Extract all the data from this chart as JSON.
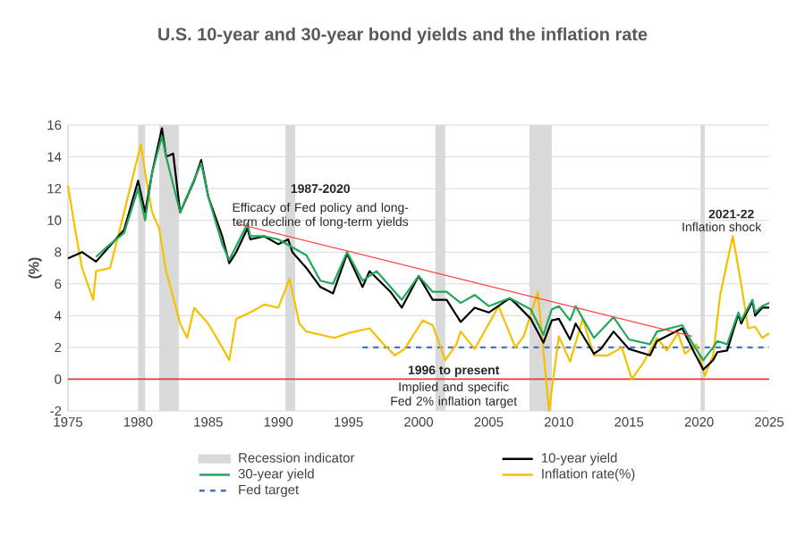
{
  "chart_data": {
    "type": "line",
    "title": "U.S. 10-year and 30-year bond yields and the inflation rate",
    "ylabel": "(%)",
    "xlim": [
      1975,
      2025
    ],
    "xticks": [
      1975,
      1980,
      1985,
      1990,
      1995,
      2000,
      2005,
      2010,
      2015,
      2020,
      2025
    ],
    "ylim": [
      -2,
      16
    ],
    "yticks": [
      -2,
      0,
      2,
      4,
      6,
      8,
      10,
      12,
      14,
      16
    ],
    "grid": "y",
    "legend": "bottom",
    "bands": [
      {
        "axis": "x",
        "from": 1980.0,
        "to": 1980.5,
        "label": "Recession indicator",
        "color": "#d9d9d9"
      },
      {
        "axis": "x",
        "from": 1981.5,
        "to": 1982.9,
        "color": "#d9d9d9"
      },
      {
        "axis": "x",
        "from": 1990.5,
        "to": 1991.2,
        "color": "#d9d9d9"
      },
      {
        "axis": "x",
        "from": 2001.2,
        "to": 2001.9,
        "color": "#d9d9d9"
      },
      {
        "axis": "x",
        "from": 2007.9,
        "to": 2009.5,
        "color": "#d9d9d9"
      },
      {
        "axis": "x",
        "from": 2020.1,
        "to": 2020.4,
        "color": "#d9d9d9"
      }
    ],
    "ref_lines": [
      {
        "axis": "y",
        "value": 0,
        "color": "#e53935"
      }
    ],
    "annotations": [
      "1987-2020",
      "Efficacy of Fed policy and long-term decline of long-term yields",
      "2021-22",
      "Inflation shock",
      "1996 to present",
      "Implied and specific Fed 2% inflation target"
    ],
    "series": [
      {
        "name": "10-year yield",
        "color": "#000000",
        "x": [
          1975,
          1976,
          1977,
          1978,
          1979,
          1980,
          1980.5,
          1981,
          1981.7,
          1982,
          1982.5,
          1983,
          1984,
          1984.5,
          1985,
          1986,
          1986.5,
          1987,
          1987.8,
          1988,
          1989,
          1990,
          1990.7,
          1991,
          1992,
          1993,
          1993.9,
          1994.9,
          1996,
          1996.5,
          1998,
          1998.8,
          2000,
          2001,
          2002,
          2003,
          2004,
          2005,
          2006.5,
          2007,
          2008,
          2008.9,
          2009.5,
          2010,
          2010.8,
          2011.2,
          2012.5,
          2013,
          2013.9,
          2015,
          2016.5,
          2017,
          2018.8,
          2019.7,
          2020.3,
          2021,
          2021.3,
          2022,
          2022.8,
          2023,
          2023.8,
          2024,
          2024.5,
          2025
        ],
        "values": [
          7.6,
          8.0,
          7.4,
          8.4,
          9.4,
          12.5,
          10.5,
          13,
          15.8,
          14,
          14.2,
          10.5,
          12.5,
          13.8,
          11.5,
          9,
          7.3,
          8.0,
          9.5,
          8.8,
          9.0,
          8.5,
          8.8,
          8.0,
          7.0,
          5.8,
          5.4,
          7.9,
          5.8,
          6.8,
          5.5,
          4.5,
          6.5,
          5.0,
          5.0,
          3.6,
          4.5,
          4.2,
          5.1,
          4.7,
          3.8,
          2.3,
          3.7,
          3.8,
          2.5,
          3.5,
          1.6,
          1.9,
          3.0,
          1.9,
          1.5,
          2.4,
          3.2,
          1.6,
          0.6,
          1.2,
          1.7,
          1.8,
          4.1,
          3.5,
          4.9,
          4.0,
          4.5,
          4.5
        ]
      },
      {
        "name": "30-year yield",
        "color": "#22a65a",
        "x": [
          1977,
          1978,
          1979,
          1980,
          1980.5,
          1981,
          1981.7,
          1982,
          1983,
          1984.5,
          1985,
          1986,
          1986.5,
          1987.8,
          1988,
          1989,
          1990,
          1991,
          1992,
          1993,
          1993.9,
          1994.9,
          1996,
          1997,
          1998.8,
          2000,
          2001,
          2002,
          2003,
          2004,
          2005,
          2006.5,
          2008,
          2008.9,
          2009.5,
          2010,
          2010.8,
          2011.2,
          2012.5,
          2013.9,
          2015,
          2016.5,
          2017,
          2018.8,
          2019.7,
          2020.3,
          2021,
          2021.3,
          2022,
          2022.8,
          2023,
          2023.8,
          2024,
          2024.5,
          2025
        ],
        "values": [
          7.7,
          8.5,
          9.2,
          12.0,
          10,
          13,
          15.3,
          14,
          10.5,
          13.6,
          11.5,
          8.5,
          7.5,
          9.8,
          9.0,
          9.0,
          8.8,
          8.3,
          7.8,
          6.2,
          6.0,
          8.0,
          6.2,
          6.8,
          5.0,
          6.5,
          5.5,
          5.5,
          4.8,
          5.3,
          4.6,
          5.1,
          4.4,
          2.8,
          4.4,
          4.6,
          3.7,
          4.6,
          2.6,
          3.9,
          2.5,
          2.2,
          3.0,
          3.4,
          2.0,
          1.2,
          2.0,
          2.4,
          2.2,
          4.2,
          3.7,
          5.0,
          4.2,
          4.6,
          4.8
        ]
      },
      {
        "name": "Inflation rate(%)",
        "color": "#f5c000",
        "x": [
          1975,
          1975.5,
          1976,
          1976.8,
          1977,
          1978,
          1979,
          1980.2,
          1980.5,
          1981,
          1981.5,
          1982,
          1983,
          1983.5,
          1984,
          1985,
          1986,
          1986.5,
          1987,
          1988,
          1989,
          1990,
          1990.8,
          1991.5,
          1992,
          1994,
          1995,
          1996.5,
          1997.5,
          1998.3,
          1999,
          2000.3,
          2001,
          2001.9,
          2002.7,
          2003,
          2004,
          2005.7,
          2006.9,
          2007.5,
          2008.5,
          2009.3,
          2010,
          2010.8,
          2011.7,
          2012.5,
          2013.5,
          2014.5,
          2015.2,
          2016,
          2017,
          2017.7,
          2018.5,
          2019,
          2019.8,
          2020.4,
          2021,
          2021.5,
          2022.4,
          2023,
          2023.5,
          2024,
          2024.5,
          2025
        ],
        "values": [
          12.2,
          9.5,
          7,
          5,
          6.8,
          7,
          10.5,
          14.8,
          13,
          10.5,
          9.5,
          6.8,
          3.5,
          2.6,
          4.5,
          3.5,
          2,
          1.2,
          3.8,
          4.2,
          4.7,
          4.5,
          6.3,
          3.5,
          3.0,
          2.6,
          2.9,
          3.2,
          2.2,
          1.5,
          1.9,
          3.7,
          3.4,
          1.2,
          2.2,
          3.0,
          1.9,
          4.6,
          2.0,
          2.7,
          5.5,
          -2.0,
          2.7,
          1.1,
          3.8,
          1.5,
          1.5,
          2.0,
          0.0,
          1.0,
          2.6,
          1.8,
          2.9,
          1.6,
          2.2,
          0.2,
          1.5,
          5.3,
          9.0,
          6.0,
          3.2,
          3.3,
          2.6,
          2.9
        ]
      },
      {
        "name": "Fed target",
        "color": "#4472c4",
        "line_style": "dashed",
        "x": [
          1996,
          2025
        ],
        "values": [
          2,
          2
        ]
      },
      {
        "color": "#ff4040",
        "x": [
          1987,
          2019.5
        ],
        "values": [
          9.8,
          2.7
        ]
      }
    ]
  }
}
